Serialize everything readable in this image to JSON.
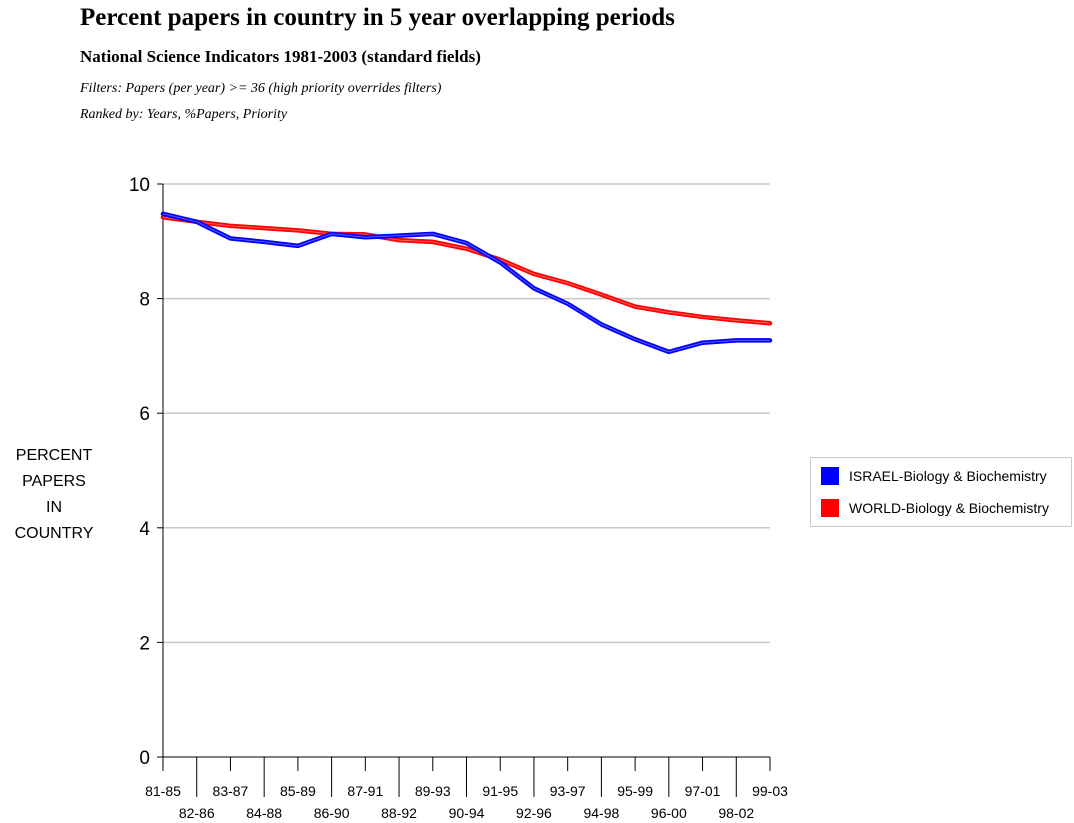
{
  "header": {
    "title": "Percent papers in country in 5 year overlapping periods",
    "subtitle": "National Science Indicators 1981-2003 (standard fields)",
    "filters": "Filters: Papers (per year) >= 36  (high priority overrides filters)",
    "ranked_by": "Ranked by: Years, %Papers, Priority"
  },
  "chart_data": {
    "type": "line",
    "title": "Percent papers in country in 5 year overlapping periods",
    "subtitle": "National Science Indicators 1981-2003 (standard fields)",
    "ylabel_lines": [
      "PERCENT",
      "PAPERS",
      "IN",
      "COUNTRY"
    ],
    "xlabel": "",
    "ylim": [
      0,
      10
    ],
    "yticks": [
      0,
      2,
      4,
      6,
      8,
      10
    ],
    "grid": true,
    "legend_position": "right",
    "categories": [
      "81-85",
      "82-86",
      "83-87",
      "84-88",
      "85-89",
      "86-90",
      "87-91",
      "88-92",
      "89-93",
      "90-94",
      "91-95",
      "92-96",
      "93-97",
      "94-98",
      "95-99",
      "96-00",
      "97-01",
      "98-02",
      "99-03"
    ],
    "series": [
      {
        "name": "ISRAEL-Biology & Biochemistry",
        "color": "#0000ff",
        "values": [
          9.48,
          9.34,
          9.05,
          8.99,
          8.92,
          9.13,
          9.07,
          9.1,
          9.13,
          8.97,
          8.63,
          8.18,
          7.91,
          7.55,
          7.29,
          7.07,
          7.23,
          7.27,
          7.27
        ]
      },
      {
        "name": "WORLD-Biology & Biochemistry",
        "color": "#ff0000",
        "values": [
          9.42,
          9.34,
          9.27,
          9.23,
          9.19,
          9.13,
          9.12,
          9.02,
          8.99,
          8.87,
          8.68,
          8.43,
          8.27,
          8.07,
          7.86,
          7.76,
          7.68,
          7.62,
          7.57
        ]
      }
    ]
  }
}
